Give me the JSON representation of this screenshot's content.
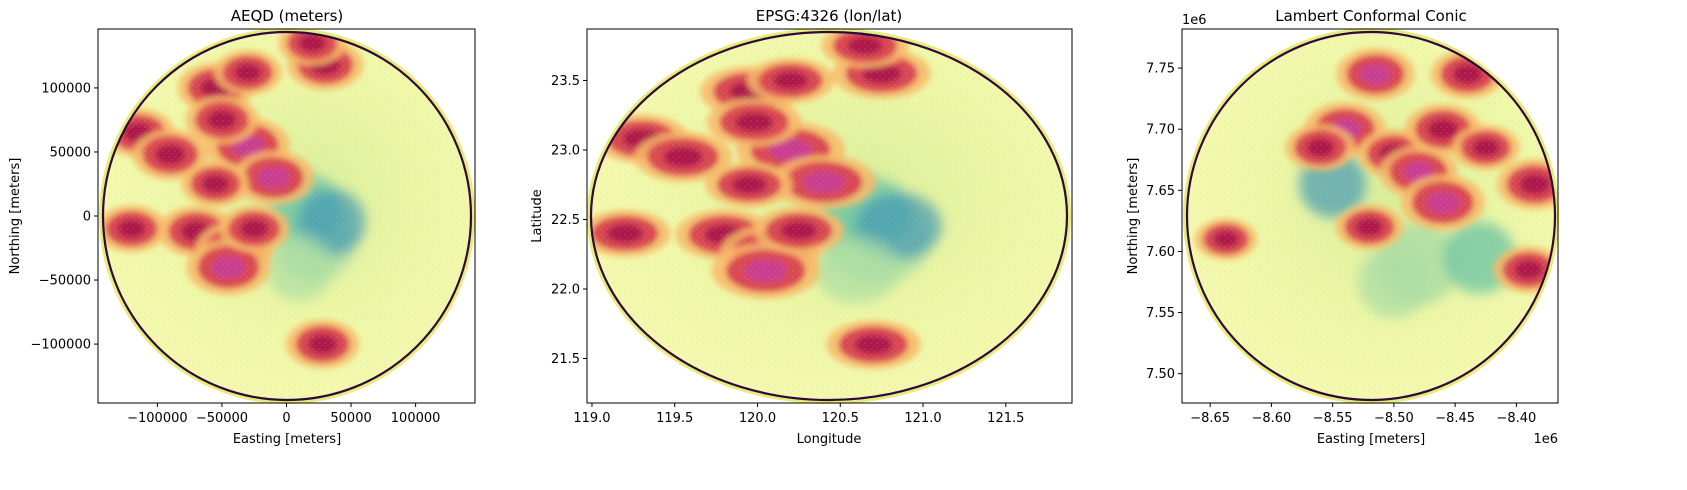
{
  "chart_data": [
    {
      "type": "heatmap",
      "title": "AEQD (meters)",
      "xlabel": "Easting [meters]",
      "ylabel": "Northing [meters]",
      "xlim": [
        -146000,
        146000
      ],
      "ylim": [
        -146000,
        146000
      ],
      "xticks": [
        -100000,
        -50000,
        0,
        50000,
        100000
      ],
      "xtick_labels": [
        "−100000",
        "−50000",
        "0",
        "50000",
        "100000"
      ],
      "yticks": [
        -100000,
        -50000,
        0,
        50000,
        100000
      ],
      "ytick_labels": [
        "−100000",
        "−50000",
        "0",
        "50000",
        "100000"
      ],
      "x_offset_label": "",
      "y_offset_label": "",
      "colormap": "Spectral_r",
      "colormap_stops": [
        "#3288bd",
        "#66c2a5",
        "#abdda4",
        "#e6f598",
        "#ffffbf",
        "#fee08b",
        "#fdae61",
        "#f46d43",
        "#d53e4f",
        "#9e0142",
        "#c51b7d"
      ],
      "ring_color": "#2d0a3a",
      "echo_cells": [
        {
          "x": -55000,
          "y": 100000,
          "intensity": 0.85
        },
        {
          "x": -30000,
          "y": 112000,
          "intensity": 0.7
        },
        {
          "x": 30000,
          "y": 118000,
          "intensity": 0.85
        },
        {
          "x": 20000,
          "y": 135000,
          "intensity": 0.7
        },
        {
          "x": -115000,
          "y": 65000,
          "intensity": 0.8
        },
        {
          "x": -90000,
          "y": 48000,
          "intensity": 0.85
        },
        {
          "x": -30000,
          "y": 55000,
          "intensity": 1.0
        },
        {
          "x": -10000,
          "y": 30000,
          "intensity": 0.95
        },
        {
          "x": -50000,
          "y": 75000,
          "intensity": 0.8
        },
        {
          "x": -55000,
          "y": 25000,
          "intensity": 0.7
        },
        {
          "x": -120000,
          "y": -10000,
          "intensity": 0.75
        },
        {
          "x": -70000,
          "y": -12000,
          "intensity": 0.85
        },
        {
          "x": -40000,
          "y": -25000,
          "intensity": 0.9
        },
        {
          "x": -45000,
          "y": -40000,
          "intensity": 1.0
        },
        {
          "x": -25000,
          "y": -10000,
          "intensity": 0.75
        },
        {
          "x": 28000,
          "y": -100000,
          "intensity": 0.8
        }
      ],
      "clear_cells": [
        {
          "x": 22000,
          "y": -18000,
          "intensity": 0.9
        },
        {
          "x": 15000,
          "y": 5000,
          "intensity": 0.7
        },
        {
          "x": 35000,
          "y": -5000,
          "intensity": 0.6
        },
        {
          "x": 10000,
          "y": -40000,
          "intensity": 0.6
        }
      ]
    },
    {
      "type": "heatmap",
      "title": "EPSG:4326 (lon/lat)",
      "xlabel": "Longitude",
      "ylabel": "Latitude",
      "xlim": [
        118.97,
        121.9
      ],
      "ylim": [
        21.18,
        23.87
      ],
      "xticks": [
        119.0,
        119.5,
        120.0,
        120.5,
        121.0,
        121.5
      ],
      "xtick_labels": [
        "119.0",
        "119.5",
        "120.0",
        "120.5",
        "121.0",
        "121.5"
      ],
      "yticks": [
        21.5,
        22.0,
        22.5,
        23.0,
        23.5
      ],
      "ytick_labels": [
        "21.5",
        "22.0",
        "22.5",
        "23.0",
        "23.5"
      ],
      "x_offset_label": "",
      "y_offset_label": "",
      "ring_color": "#2d0a3a",
      "echo_cells": [
        {
          "x": 119.95,
          "y": 23.42,
          "intensity": 0.85
        },
        {
          "x": 120.2,
          "y": 23.5,
          "intensity": 0.7
        },
        {
          "x": 120.75,
          "y": 23.55,
          "intensity": 0.85
        },
        {
          "x": 120.65,
          "y": 23.75,
          "intensity": 0.7
        },
        {
          "x": 119.3,
          "y": 23.08,
          "intensity": 0.8
        },
        {
          "x": 119.55,
          "y": 22.95,
          "intensity": 0.85
        },
        {
          "x": 120.2,
          "y": 23.0,
          "intensity": 1.0
        },
        {
          "x": 120.4,
          "y": 22.77,
          "intensity": 0.95
        },
        {
          "x": 119.98,
          "y": 23.2,
          "intensity": 0.8
        },
        {
          "x": 119.95,
          "y": 22.75,
          "intensity": 0.7
        },
        {
          "x": 119.2,
          "y": 22.4,
          "intensity": 0.75
        },
        {
          "x": 119.8,
          "y": 22.39,
          "intensity": 0.85
        },
        {
          "x": 120.08,
          "y": 22.27,
          "intensity": 0.9
        },
        {
          "x": 120.05,
          "y": 22.13,
          "intensity": 1.0
        },
        {
          "x": 120.25,
          "y": 22.42,
          "intensity": 0.75
        },
        {
          "x": 120.7,
          "y": 21.6,
          "intensity": 0.8
        }
      ],
      "clear_cells": [
        {
          "x": 120.72,
          "y": 22.34,
          "intensity": 0.9
        },
        {
          "x": 120.65,
          "y": 22.55,
          "intensity": 0.7
        },
        {
          "x": 120.85,
          "y": 22.45,
          "intensity": 0.6
        },
        {
          "x": 120.6,
          "y": 22.14,
          "intensity": 0.6
        }
      ]
    },
    {
      "type": "heatmap",
      "title": "Lambert Conformal Conic",
      "xlabel": "Easting [meters]",
      "ylabel": "Northing [meters]",
      "xlim": [
        -8.673,
        -8.366
      ],
      "ylim": [
        7.476,
        7.782
      ],
      "xticks": [
        -8.65,
        -8.6,
        -8.55,
        -8.5,
        -8.45,
        -8.4
      ],
      "xtick_labels": [
        "−8.65",
        "−8.60",
        "−8.55",
        "−8.50",
        "−8.45",
        "−8.40"
      ],
      "yticks": [
        7.5,
        7.55,
        7.6,
        7.65,
        7.7,
        7.75
      ],
      "ytick_labels": [
        "7.50",
        "7.55",
        "7.60",
        "7.65",
        "7.70",
        "7.75"
      ],
      "x_offset_label": "1e6",
      "y_offset_label": "1e6",
      "ring_color": "#2d0a3a",
      "echo_cells": [
        {
          "x": -8.515,
          "y": 7.745,
          "intensity": 0.9
        },
        {
          "x": -8.54,
          "y": 7.7,
          "intensity": 0.95
        },
        {
          "x": -8.5,
          "y": 7.68,
          "intensity": 0.8
        },
        {
          "x": -8.48,
          "y": 7.665,
          "intensity": 0.9
        },
        {
          "x": -8.46,
          "y": 7.7,
          "intensity": 0.85
        },
        {
          "x": -8.44,
          "y": 7.745,
          "intensity": 0.8
        },
        {
          "x": -8.46,
          "y": 7.64,
          "intensity": 1.0
        },
        {
          "x": -8.425,
          "y": 7.685,
          "intensity": 0.7
        },
        {
          "x": -8.385,
          "y": 7.655,
          "intensity": 0.85
        },
        {
          "x": -8.39,
          "y": 7.585,
          "intensity": 0.75
        },
        {
          "x": -8.52,
          "y": 7.62,
          "intensity": 0.7
        },
        {
          "x": -8.56,
          "y": 7.685,
          "intensity": 0.75
        },
        {
          "x": -8.637,
          "y": 7.61,
          "intensity": 0.6
        }
      ],
      "clear_cells": [
        {
          "x": -8.48,
          "y": 7.59,
          "intensity": 0.9
        },
        {
          "x": -8.43,
          "y": 7.595,
          "intensity": 0.7
        },
        {
          "x": -8.55,
          "y": 7.655,
          "intensity": 0.6
        },
        {
          "x": -8.5,
          "y": 7.575,
          "intensity": 0.7
        }
      ]
    }
  ]
}
